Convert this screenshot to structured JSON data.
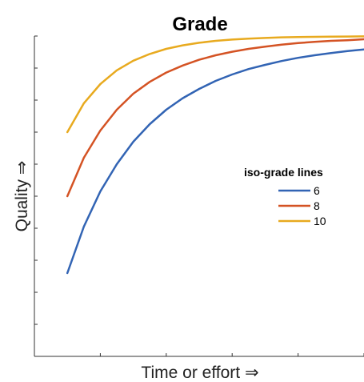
{
  "chart_data": {
    "type": "line",
    "title": "Grade",
    "xlabel": "Time or effort ⇒",
    "ylabel": "Quality ⇒",
    "xlim": [
      0,
      10
    ],
    "ylim": [
      0,
      10
    ],
    "x_tick_labels_shown": false,
    "y_tick_labels_shown": false,
    "grid": false,
    "legend": {
      "title": "iso-grade lines",
      "placement": "right-middle"
    },
    "x": [
      1.0,
      1.5,
      2.0,
      2.5,
      3.0,
      3.5,
      4.0,
      4.5,
      5.0,
      5.5,
      6.0,
      6.5,
      7.0,
      7.5,
      8.0,
      8.5,
      9.0,
      9.5,
      10.0
    ],
    "series": [
      {
        "name": "6",
        "color": "#3264B4",
        "values": [
          2.6,
          4.05,
          5.15,
          6.0,
          6.7,
          7.25,
          7.7,
          8.06,
          8.35,
          8.6,
          8.8,
          8.97,
          9.1,
          9.22,
          9.32,
          9.4,
          9.47,
          9.53,
          9.58
        ]
      },
      {
        "name": "8",
        "color": "#D45324",
        "values": [
          5.0,
          6.2,
          7.05,
          7.7,
          8.2,
          8.57,
          8.86,
          9.08,
          9.26,
          9.4,
          9.51,
          9.6,
          9.67,
          9.73,
          9.78,
          9.82,
          9.85,
          9.87,
          9.9
        ]
      },
      {
        "name": "10",
        "color": "#E8AA1F",
        "values": [
          7.0,
          7.9,
          8.5,
          8.93,
          9.23,
          9.44,
          9.6,
          9.71,
          9.79,
          9.85,
          9.89,
          9.92,
          9.94,
          9.96,
          9.97,
          9.975,
          9.98,
          9.985,
          9.99
        ]
      }
    ]
  }
}
